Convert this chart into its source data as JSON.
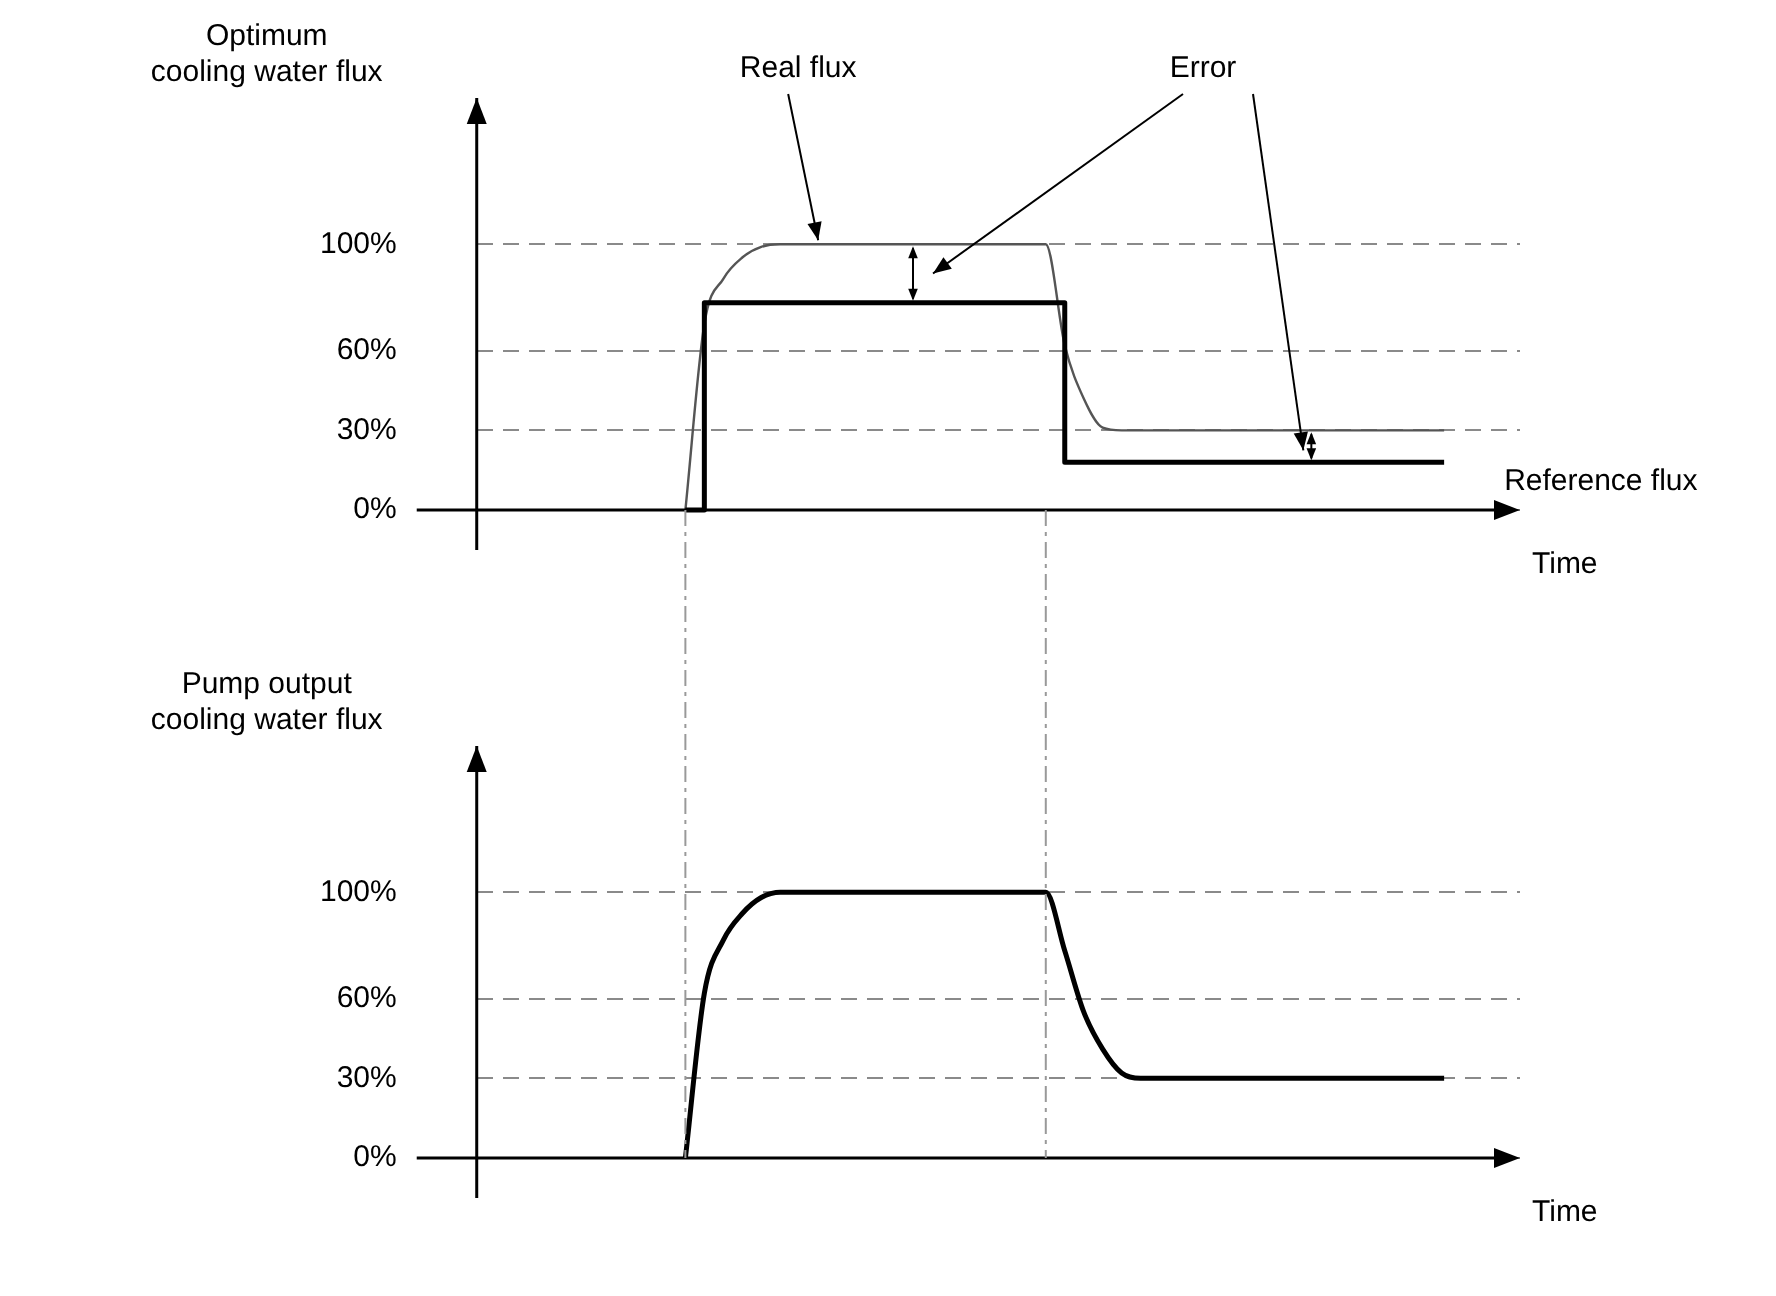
{
  "chart_data": [
    {
      "type": "line",
      "ylabel": "Optimum cooling water flux",
      "xlabel": "Time",
      "annotations": [
        "Error"
      ],
      "categories": [
        null,
        null,
        null,
        null,
        null,
        null,
        null,
        null,
        null,
        null,
        null,
        null,
        null,
        null,
        null,
        null,
        null,
        null,
        null,
        null,
        null,
        null,
        null,
        null,
        null,
        null,
        null,
        null,
        null,
        null,
        null,
        null,
        null,
        null,
        null,
        null,
        null,
        null,
        null,
        null,
        null,
        null,
        null,
        null,
        null,
        null,
        null,
        null,
        null,
        null,
        null,
        null,
        null,
        null,
        null,
        null
      ],
      "series": [
        {
          "name": "Reference flux",
          "type": "step",
          "color": "#000000",
          "values": [
            null,
            null,
            null,
            null,
            null,
            null,
            null,
            null,
            null,
            null,
            null,
            0,
            78,
            78,
            78,
            78,
            78,
            78,
            78,
            78,
            78,
            78,
            78,
            78,
            78,
            78,
            78,
            78,
            78,
            78,
            78,
            18,
            18,
            18,
            18,
            18,
            18,
            18,
            18,
            18,
            18,
            18,
            18,
            18,
            18,
            18,
            18,
            18,
            18,
            18,
            18,
            18,
            null,
            null,
            null,
            null
          ]
        },
        {
          "name": "Real flux",
          "type": "line",
          "color": "#555555",
          "values": [
            null,
            null,
            null,
            null,
            null,
            null,
            null,
            null,
            null,
            null,
            null,
            0,
            70,
            87,
            95,
            99,
            100,
            100,
            100,
            100,
            100,
            100,
            100,
            100,
            100,
            100,
            100,
            100,
            100,
            100,
            100,
            62,
            42,
            31,
            30,
            30,
            30,
            30,
            30,
            30,
            30,
            30,
            30,
            30,
            30,
            30,
            30,
            30,
            30,
            30,
            30,
            30,
            null,
            null,
            null,
            null
          ]
        }
      ],
      "ylim": [
        -15,
        155
      ],
      "yticks": [
        {
          "value": 0,
          "label": "0%"
        },
        {
          "value": 30,
          "label": "30%"
        },
        {
          "value": 60,
          "label": "60%"
        },
        {
          "value": 100,
          "label": "100%"
        }
      ],
      "grid": "y",
      "tick_labels": "y"
    },
    {
      "type": "line",
      "ylabel": "Pump output cooling water flux",
      "xlabel": "Time",
      "categories": [
        null,
        null,
        null,
        null,
        null,
        null,
        null,
        null,
        null,
        null,
        null,
        null,
        null,
        null,
        null,
        null,
        null,
        null,
        null,
        null,
        null,
        null,
        null,
        null,
        null,
        null,
        null,
        null,
        null,
        null,
        null,
        null,
        null,
        null,
        null,
        null,
        null,
        null,
        null,
        null,
        null,
        null,
        null,
        null,
        null,
        null,
        null,
        null,
        null,
        null,
        null,
        null,
        null,
        null,
        null,
        null
      ],
      "series": [
        {
          "color": "#000000",
          "values": [
            null,
            null,
            null,
            null,
            null,
            null,
            null,
            null,
            null,
            null,
            null,
            0,
            62,
            82,
            92,
            98,
            100,
            100,
            100,
            100,
            100,
            100,
            100,
            100,
            100,
            100,
            100,
            100,
            100,
            100,
            100,
            78,
            55,
            41,
            32,
            30,
            30,
            30,
            30,
            30,
            30,
            30,
            30,
            30,
            30,
            30,
            30,
            30,
            30,
            30,
            30,
            30,
            null,
            null,
            null,
            null
          ]
        }
      ],
      "ylim": [
        -15,
        155
      ],
      "yticks": [
        {
          "value": 0,
          "label": "0%"
        },
        {
          "value": 30,
          "label": "30%"
        },
        {
          "value": 60,
          "label": "60%"
        },
        {
          "value": 100,
          "label": "100%"
        }
      ],
      "grid": "y",
      "tick_labels": "y"
    }
  ]
}
